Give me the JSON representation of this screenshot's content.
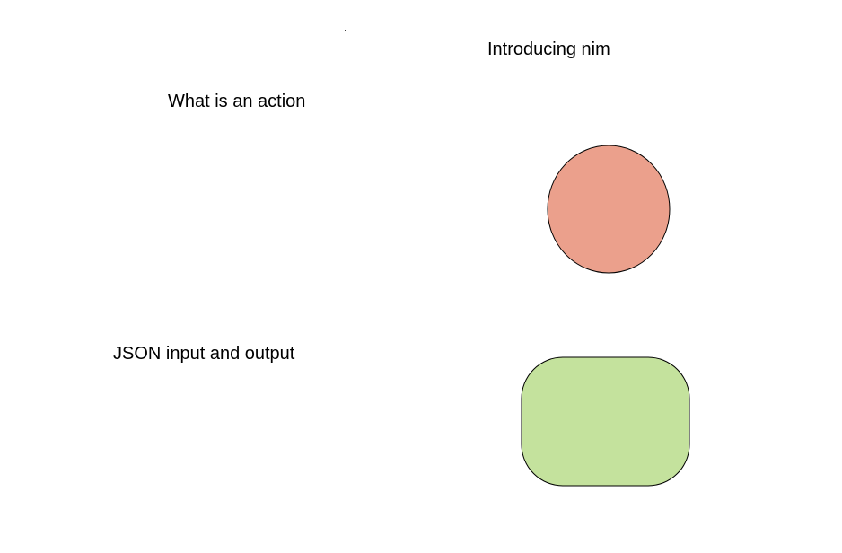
{
  "labels": {
    "introducing": "Introducing nim",
    "action": "What is an action",
    "json": "JSON input and output"
  },
  "shapes": {
    "circle": {
      "fill": "#eba08c",
      "stroke": "#000000"
    },
    "rounded_rect": {
      "fill": "#c4e29d",
      "stroke": "#000000"
    }
  }
}
